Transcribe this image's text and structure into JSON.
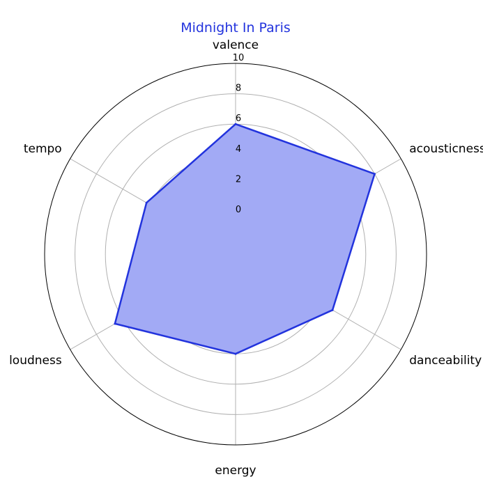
{
  "chart_data": {
    "type": "radar",
    "title": "Midnight In Paris",
    "axes": [
      "valence",
      "acousticness",
      "danceability",
      "energy",
      "loudness",
      "tempo"
    ],
    "values": [
      6.0,
      8.0,
      4.8,
      4.0,
      6.6,
      4.2
    ],
    "rlim": [
      0,
      10
    ],
    "rticks": [
      "0",
      "2",
      "4",
      "6",
      "8",
      "10"
    ],
    "rtick_values": [
      0,
      2,
      4,
      6,
      8,
      10
    ],
    "grid": true,
    "colors": {
      "line": "#2233dd",
      "fill": "#a2aaf5",
      "grid": "#b0b0b0",
      "frame": "#000000",
      "title": "#2233dd"
    }
  }
}
